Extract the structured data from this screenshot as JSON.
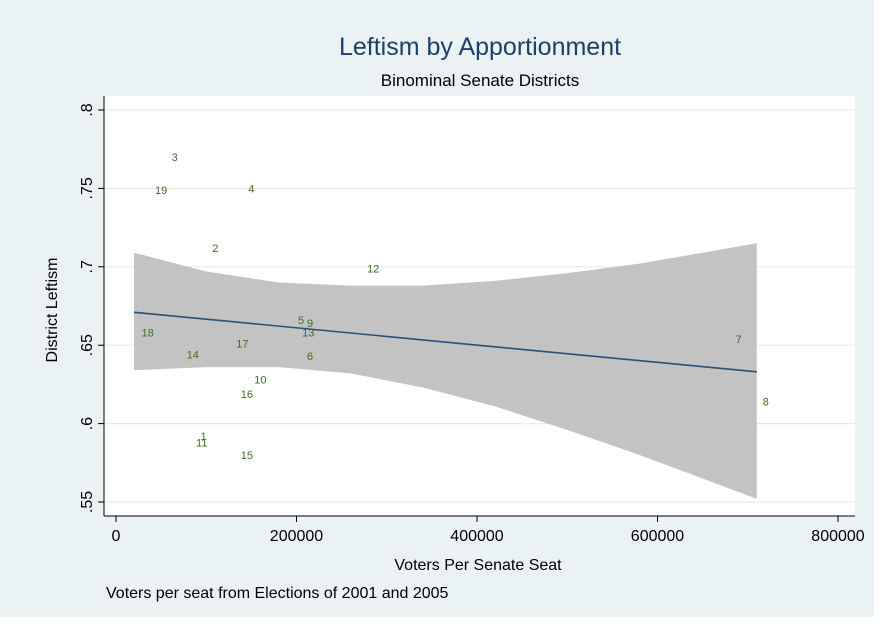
{
  "chart_data": {
    "type": "scatter",
    "title": "Leftism by Apportionment",
    "subtitle": "Binominal Senate Districts",
    "xlabel": "Voters Per Senate Seat",
    "ylabel": "District Leftism",
    "note": "Voters per seat from Elections of 2001 and 2005",
    "xlim": [
      -10000,
      805000
    ],
    "ylim": [
      0.55,
      0.8
    ],
    "xticks": [
      0,
      200000,
      400000,
      600000,
      800000
    ],
    "xtick_labels": [
      "0",
      "200000",
      "400000",
      "600000",
      "800000"
    ],
    "yticks": [
      0.55,
      0.6,
      0.65,
      0.7,
      0.75,
      0.8
    ],
    "ytick_labels": [
      ".55",
      ".6",
      ".65",
      ".7",
      ".75",
      ".8"
    ],
    "grid": true,
    "points": [
      {
        "label": "3",
        "x": 65000,
        "y": 0.77
      },
      {
        "label": "19",
        "x": 50000,
        "y": 0.749
      },
      {
        "label": "4",
        "x": 150000,
        "y": 0.75
      },
      {
        "label": "2",
        "x": 110000,
        "y": 0.712
      },
      {
        "label": "12",
        "x": 285000,
        "y": 0.699
      },
      {
        "label": "5",
        "x": 205000,
        "y": 0.666
      },
      {
        "label": "9",
        "x": 215000,
        "y": 0.664
      },
      {
        "label": "13",
        "x": 213000,
        "y": 0.658
      },
      {
        "label": "18",
        "x": 35000,
        "y": 0.658
      },
      {
        "label": "7",
        "x": 690000,
        "y": 0.654
      },
      {
        "label": "17",
        "x": 140000,
        "y": 0.651
      },
      {
        "label": "14",
        "x": 85000,
        "y": 0.644
      },
      {
        "label": "6",
        "x": 215000,
        "y": 0.643
      },
      {
        "label": "10",
        "x": 160000,
        "y": 0.628
      },
      {
        "label": "16",
        "x": 145000,
        "y": 0.619
      },
      {
        "label": "8",
        "x": 720000,
        "y": 0.614
      },
      {
        "label": "1",
        "x": 97000,
        "y": 0.592
      },
      {
        "label": "11",
        "x": 95000,
        "y": 0.588
      },
      {
        "label": "15",
        "x": 145000,
        "y": 0.58
      }
    ],
    "fit_line": {
      "x": [
        20000,
        710000
      ],
      "y": [
        0.671,
        0.633
      ]
    },
    "confidence_band": {
      "x": [
        20000,
        100000,
        180000,
        260000,
        340000,
        420000,
        500000,
        580000,
        650000,
        710000
      ],
      "upper": [
        0.709,
        0.697,
        0.69,
        0.688,
        0.688,
        0.691,
        0.696,
        0.702,
        0.709,
        0.715
      ],
      "lower": [
        0.634,
        0.636,
        0.636,
        0.632,
        0.623,
        0.611,
        0.596,
        0.58,
        0.565,
        0.552
      ]
    },
    "colors": {
      "background": "#eaf2f3",
      "plot_area": "#ffffff",
      "title": "#1f3f6b",
      "point_labels": "#3d6f1c",
      "fit_line": "#2b4e7a",
      "band": "#c3c3c3",
      "grid": "#e3ecee"
    }
  }
}
